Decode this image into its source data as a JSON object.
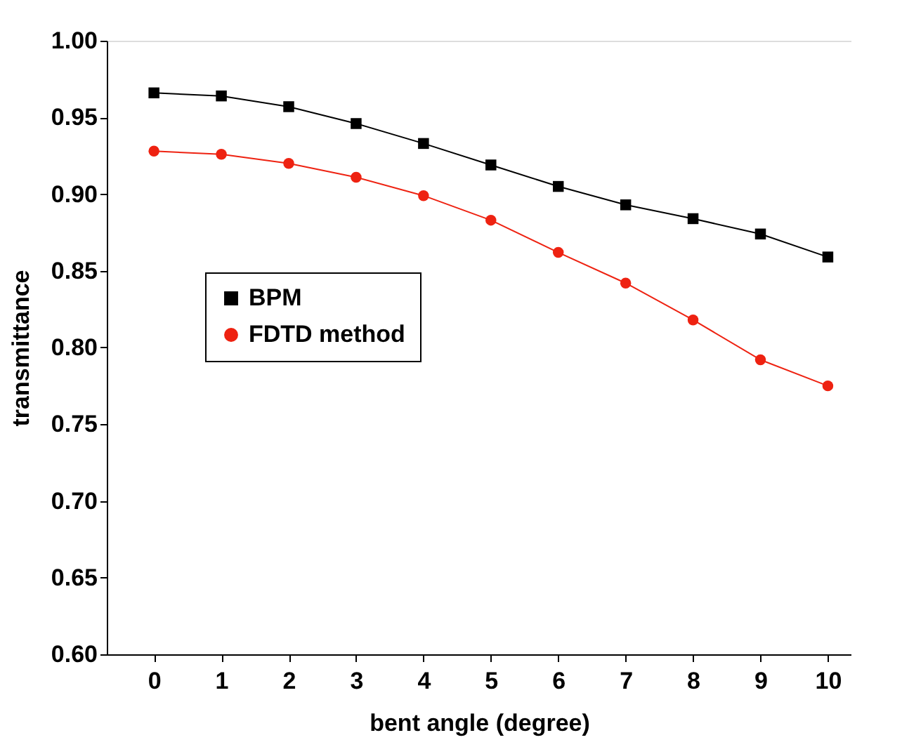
{
  "chart_data": {
    "type": "line",
    "xlabel": "bent angle (degree)",
    "ylabel": "transmittance",
    "x": [
      0,
      1,
      2,
      3,
      4,
      5,
      6,
      7,
      8,
      9,
      10
    ],
    "xlim": [
      -0.7,
      10.35
    ],
    "xticks": [
      0,
      1,
      2,
      3,
      4,
      5,
      6,
      7,
      8,
      9,
      10
    ],
    "ylim": [
      0.6,
      1.0
    ],
    "yticks": [
      {
        "value": 0.6,
        "label": "0.60"
      },
      0.65,
      {
        "value": 0.7,
        "label": "0.70"
      },
      0.75,
      {
        "value": 0.8,
        "label": "0.80"
      },
      0.85,
      {
        "value": 0.9,
        "label": "0.90"
      },
      0.95,
      {
        "value": 1.0,
        "label": "1.00"
      }
    ],
    "series": [
      {
        "name": "BPM",
        "color": "#000000",
        "marker": "square",
        "values": [
          0.966,
          0.964,
          0.957,
          0.946,
          0.933,
          0.919,
          0.905,
          0.893,
          0.884,
          0.874,
          0.859
        ]
      },
      {
        "name": "FDTD method",
        "color": "#ee2211",
        "marker": "circle",
        "values": [
          0.928,
          0.926,
          0.92,
          0.911,
          0.899,
          0.883,
          0.862,
          0.842,
          0.818,
          0.792,
          0.775
        ]
      }
    ],
    "legend": "left",
    "grid": false,
    "line_style": "solid"
  }
}
